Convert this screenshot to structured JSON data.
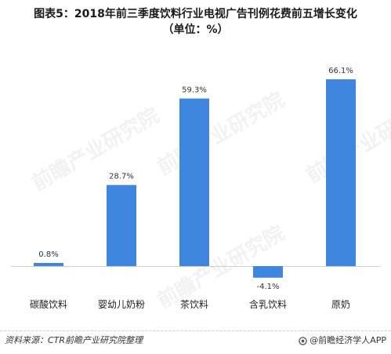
{
  "chart_data": {
    "type": "bar",
    "title": "图表5：2018年前三季度饮料行业电视广告刊例花费前五增长变化",
    "subtitle": "（单位：%）",
    "categories": [
      "碳酸饮料",
      "婴幼儿奶粉",
      "茶饮料",
      "含乳饮料",
      "原奶"
    ],
    "values": [
      0.8,
      28.7,
      59.3,
      -4.1,
      66.1
    ],
    "data_labels": [
      "0.8%",
      "28.7%",
      "59.3%",
      "-4.1%",
      "66.1%"
    ],
    "xlabel": "",
    "ylabel": "",
    "ylim": [
      -5,
      70
    ],
    "grid": false,
    "legend": "none",
    "bar_color": "#3f86e0"
  },
  "watermark": "前瞻产业研究院",
  "footer": {
    "source": "资料来源：CTR前瞻产业研究院整理",
    "brand": "@前瞻经济学人APP"
  }
}
